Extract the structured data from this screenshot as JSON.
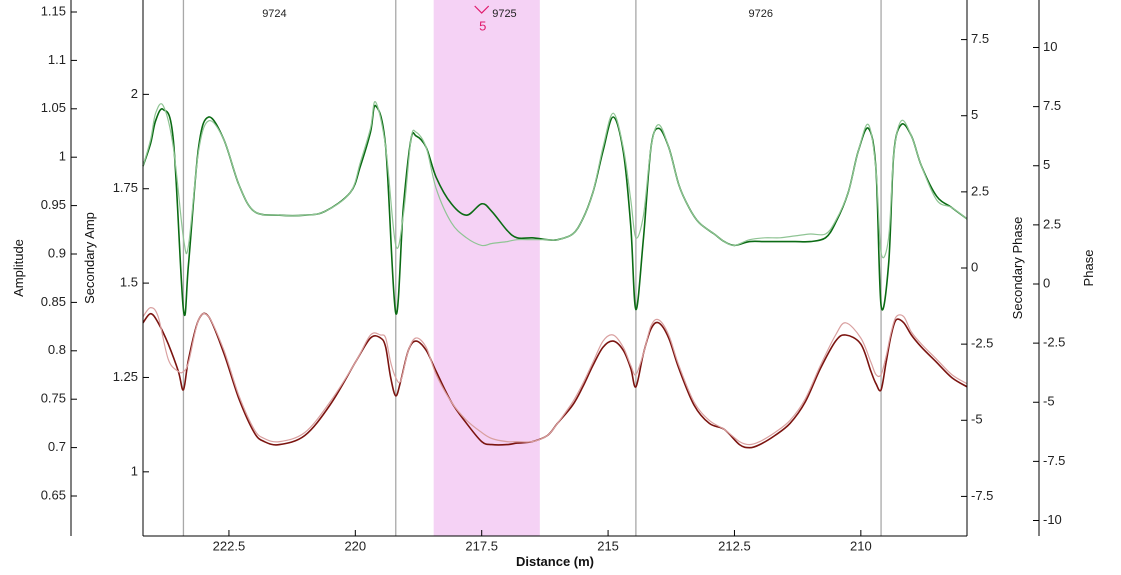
{
  "chart_data": {
    "type": "line",
    "title": "",
    "xlabel": "Distance (m)",
    "x_reversed": true,
    "xlim": [
      224.2,
      207.9
    ],
    "x_ticks": [
      222.5,
      220,
      217.5,
      215,
      212.5,
      210
    ],
    "axes": {
      "amplitude": {
        "label": "Amplitude",
        "ticks": [
          1.15,
          1.1,
          1.05,
          1,
          0.95,
          0.9,
          0.85,
          0.8,
          0.75,
          0.7,
          0.65
        ]
      },
      "secondary_amp": {
        "label": "Secondary Amp",
        "ylim": [
          0.83,
          2.25
        ],
        "ticks": [
          2,
          1.75,
          1.5,
          1.25,
          1
        ]
      },
      "secondary_phase": {
        "label": "Secondary Phase",
        "ylim": [
          -8.8,
          8.8
        ],
        "ticks": [
          7.5,
          5,
          2.5,
          0,
          -2.5,
          -5,
          -7.5
        ]
      },
      "phase": {
        "label": "Phase",
        "ticks": [
          10,
          7.5,
          5,
          2.5,
          0,
          -2.5,
          -5,
          -7.5,
          -10
        ]
      }
    },
    "fiducials": [
      {
        "x": 223.4
      },
      {
        "x": 219.2
      },
      {
        "x": 214.45
      },
      {
        "x": 209.6
      }
    ],
    "segment_labels": [
      {
        "x": 221.6,
        "text": "9724"
      },
      {
        "x": 217.05,
        "text": "9725"
      },
      {
        "x": 211.98,
        "text": "9726"
      }
    ],
    "highlight": {
      "x_start": 218.45,
      "x_end": 216.35,
      "color": "#f5d2f5"
    },
    "marker": {
      "x": 217.5,
      "label": "5",
      "color": "#e0186b"
    },
    "series": [
      {
        "axis": "secondary_amp",
        "color": "#0b6b14",
        "x": [
          224.2,
          224.05,
          223.95,
          223.8,
          223.6,
          223.4,
          223.3,
          223.1,
          222.9,
          222.6,
          222.3,
          222.0,
          221.5,
          221.0,
          220.6,
          220.1,
          219.9,
          219.7,
          219.6,
          219.4,
          219.2,
          219.05,
          218.9,
          218.8,
          218.6,
          218.4,
          218.1,
          217.8,
          217.5,
          217.3,
          217.0,
          216.8,
          216.5,
          216.2,
          216.0,
          215.7,
          215.5,
          215.3,
          215.1,
          214.9,
          214.7,
          214.55,
          214.45,
          214.3,
          214.15,
          214.0,
          213.8,
          213.6,
          213.4,
          213.2,
          212.9,
          212.7,
          212.5,
          212.2,
          211.9,
          211.6,
          211.3,
          211.0,
          210.7,
          210.5,
          210.25,
          210.05,
          209.85,
          209.7,
          209.6,
          209.45,
          209.35,
          209.2,
          209.0,
          208.8,
          208.5,
          208.2,
          207.9
        ],
        "values": [
          1.81,
          1.87,
          1.93,
          1.96,
          1.88,
          1.43,
          1.55,
          1.86,
          1.94,
          1.88,
          1.76,
          1.69,
          1.68,
          1.68,
          1.69,
          1.74,
          1.81,
          1.9,
          1.97,
          1.86,
          1.42,
          1.7,
          1.88,
          1.89,
          1.86,
          1.78,
          1.71,
          1.68,
          1.71,
          1.69,
          1.64,
          1.62,
          1.62,
          1.615,
          1.615,
          1.63,
          1.67,
          1.74,
          1.85,
          1.94,
          1.85,
          1.65,
          1.43,
          1.62,
          1.86,
          1.91,
          1.86,
          1.76,
          1.7,
          1.66,
          1.63,
          1.61,
          1.6,
          1.61,
          1.61,
          1.61,
          1.61,
          1.61,
          1.62,
          1.66,
          1.74,
          1.85,
          1.91,
          1.8,
          1.44,
          1.55,
          1.84,
          1.92,
          1.89,
          1.81,
          1.73,
          1.7,
          1.67
        ]
      },
      {
        "axis": "secondary_amp",
        "color": "#8fc494",
        "x": [
          224.2,
          224.05,
          223.95,
          223.8,
          223.6,
          223.4,
          223.3,
          223.1,
          222.9,
          222.6,
          222.3,
          222.0,
          221.5,
          221.0,
          220.6,
          220.1,
          219.9,
          219.7,
          219.6,
          219.4,
          219.2,
          219.05,
          218.9,
          218.8,
          218.6,
          218.4,
          218.1,
          217.8,
          217.5,
          217.3,
          217.0,
          216.8,
          216.5,
          216.2,
          216.0,
          215.7,
          215.5,
          215.3,
          215.1,
          214.9,
          214.7,
          214.55,
          214.45,
          214.3,
          214.15,
          214.0,
          213.8,
          213.6,
          213.4,
          213.2,
          212.9,
          212.7,
          212.5,
          212.2,
          211.9,
          211.6,
          211.3,
          211.0,
          210.7,
          210.5,
          210.25,
          210.05,
          209.85,
          209.7,
          209.6,
          209.45,
          209.35,
          209.2,
          209.0,
          208.8,
          208.5,
          208.2,
          207.9
        ],
        "values": [
          1.81,
          1.88,
          1.95,
          1.97,
          1.86,
          1.62,
          1.6,
          1.85,
          1.93,
          1.88,
          1.76,
          1.69,
          1.68,
          1.68,
          1.69,
          1.74,
          1.82,
          1.91,
          1.98,
          1.86,
          1.6,
          1.68,
          1.88,
          1.9,
          1.86,
          1.75,
          1.66,
          1.62,
          1.6,
          1.605,
          1.61,
          1.615,
          1.615,
          1.615,
          1.615,
          1.63,
          1.67,
          1.74,
          1.86,
          1.95,
          1.86,
          1.72,
          1.62,
          1.68,
          1.86,
          1.92,
          1.86,
          1.76,
          1.7,
          1.66,
          1.63,
          1.61,
          1.6,
          1.615,
          1.62,
          1.62,
          1.625,
          1.63,
          1.63,
          1.665,
          1.74,
          1.85,
          1.92,
          1.8,
          1.58,
          1.62,
          1.84,
          1.93,
          1.89,
          1.81,
          1.72,
          1.7,
          1.67
        ]
      },
      {
        "axis": "secondary_phase",
        "color": "#7b1410",
        "x": [
          224.2,
          224.05,
          223.9,
          223.7,
          223.5,
          223.4,
          223.3,
          223.1,
          222.9,
          222.6,
          222.3,
          222.0,
          221.8,
          221.5,
          221.0,
          220.5,
          220.0,
          219.7,
          219.5,
          219.4,
          219.3,
          219.2,
          219.1,
          218.95,
          218.8,
          218.6,
          218.4,
          218.1,
          217.8,
          217.5,
          217.3,
          217.0,
          216.8,
          216.5,
          216.2,
          216.0,
          215.7,
          215.5,
          215.3,
          215.1,
          214.9,
          214.7,
          214.55,
          214.45,
          214.3,
          214.15,
          214.0,
          213.8,
          213.6,
          213.3,
          213.0,
          212.7,
          212.4,
          212.2,
          212.0,
          211.7,
          211.4,
          211.1,
          210.8,
          210.5,
          210.3,
          210.0,
          209.8,
          209.7,
          209.6,
          209.5,
          209.4,
          209.3,
          209.15,
          209.0,
          208.8,
          208.5,
          208.2,
          207.9
        ],
        "values": [
          -1.8,
          -1.5,
          -1.8,
          -2.5,
          -3.4,
          -4.0,
          -3.0,
          -1.7,
          -1.6,
          -2.8,
          -4.3,
          -5.4,
          -5.7,
          -5.8,
          -5.5,
          -4.5,
          -3.1,
          -2.3,
          -2.3,
          -2.6,
          -3.6,
          -4.2,
          -3.7,
          -2.7,
          -2.4,
          -2.7,
          -3.4,
          -4.4,
          -5.1,
          -5.7,
          -5.8,
          -5.8,
          -5.75,
          -5.7,
          -5.5,
          -5.1,
          -4.5,
          -3.9,
          -3.2,
          -2.6,
          -2.4,
          -2.7,
          -3.3,
          -3.9,
          -2.8,
          -2.0,
          -1.8,
          -2.3,
          -3.3,
          -4.5,
          -5.1,
          -5.3,
          -5.8,
          -5.9,
          -5.8,
          -5.5,
          -5.1,
          -4.4,
          -3.3,
          -2.4,
          -2.2,
          -2.5,
          -3.4,
          -3.8,
          -4.0,
          -3.1,
          -2.2,
          -1.7,
          -1.8,
          -2.2,
          -2.6,
          -3.1,
          -3.6,
          -3.9
        ]
      },
      {
        "axis": "secondary_phase",
        "color": "#d9a0a0",
        "x": [
          224.2,
          224.05,
          223.9,
          223.7,
          223.5,
          223.4,
          223.3,
          223.1,
          222.9,
          222.6,
          222.3,
          222.0,
          221.8,
          221.5,
          221.0,
          220.5,
          220.0,
          219.7,
          219.5,
          219.4,
          219.3,
          219.2,
          219.1,
          218.95,
          218.8,
          218.6,
          218.4,
          218.1,
          217.8,
          217.5,
          217.3,
          217.0,
          216.8,
          216.5,
          216.2,
          216.0,
          215.7,
          215.5,
          215.3,
          215.1,
          214.9,
          214.7,
          214.55,
          214.45,
          214.3,
          214.15,
          214.0,
          213.8,
          213.6,
          213.3,
          213.0,
          212.7,
          212.4,
          212.2,
          212.0,
          211.7,
          211.4,
          211.1,
          210.8,
          210.5,
          210.3,
          210.0,
          209.8,
          209.7,
          209.6,
          209.5,
          209.4,
          209.3,
          209.15,
          209.0,
          208.8,
          208.5,
          208.2,
          207.9
        ],
        "values": [
          -1.6,
          -1.3,
          -1.6,
          -3.0,
          -3.4,
          -3.4,
          -3.1,
          -1.7,
          -1.6,
          -2.7,
          -4.2,
          -5.3,
          -5.6,
          -5.7,
          -5.4,
          -4.4,
          -3.1,
          -2.2,
          -2.2,
          -2.3,
          -3.1,
          -3.6,
          -3.7,
          -2.7,
          -2.3,
          -2.6,
          -3.5,
          -4.4,
          -5.0,
          -5.4,
          -5.6,
          -5.7,
          -5.7,
          -5.7,
          -5.5,
          -5.1,
          -4.4,
          -3.8,
          -3.1,
          -2.4,
          -2.2,
          -2.6,
          -3.2,
          -3.5,
          -2.8,
          -1.9,
          -1.7,
          -2.2,
          -3.2,
          -4.4,
          -5.0,
          -5.3,
          -5.7,
          -5.8,
          -5.7,
          -5.4,
          -5.0,
          -4.3,
          -3.2,
          -2.2,
          -1.8,
          -2.3,
          -3.1,
          -3.5,
          -3.5,
          -2.9,
          -2.1,
          -1.6,
          -1.6,
          -2.1,
          -2.5,
          -3.0,
          -3.5,
          -3.8
        ]
      }
    ]
  }
}
